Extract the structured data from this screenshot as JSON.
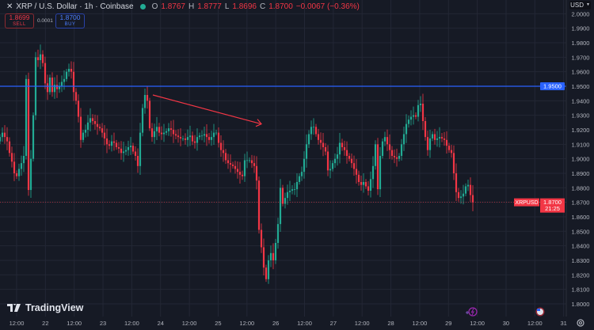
{
  "header": {
    "title": "XRP / U.S. Dollar · 1h · Coinbase",
    "open_label": "O",
    "open": "1.8767",
    "high_label": "H",
    "high": "1.8777",
    "low_label": "L",
    "low": "1.8696",
    "close_label": "C",
    "close": "1.8700",
    "change": "−0.0067 (−0.36%)"
  },
  "trade": {
    "sell_price": "1.8699",
    "sell_label": "SELL",
    "spread": "0.0001",
    "buy_price": "1.8700",
    "buy_label": "BUY"
  },
  "currency": "USD",
  "brand": "TradingView",
  "colors": {
    "up": "#22ab94",
    "down": "#f23645",
    "hline": "#2962ff",
    "background": "#161a25"
  },
  "chart_data": {
    "type": "candlestick",
    "symbol_label": "XRPUSD",
    "last_price": "1.8700",
    "countdown": "21:25",
    "horizontal_line": {
      "value": 1.95,
      "label": "1.9500"
    },
    "trend_arrow": {
      "from": 1.944,
      "to": 1.924
    },
    "ylim": [
      1.796,
      2.0
    ],
    "y_ticks": [
      "2.0000",
      "1.9900",
      "1.9800",
      "1.9700",
      "1.9600",
      "1.9500",
      "1.9400",
      "1.9300",
      "1.9200",
      "1.9100",
      "1.9000",
      "1.8900",
      "1.8800",
      "1.8700",
      "1.8600",
      "1.8500",
      "1.8400",
      "1.8300",
      "1.8200",
      "1.8100",
      "1.8000"
    ],
    "x_ticks": [
      "12:00",
      "22",
      "12:00",
      "23",
      "12:00",
      "24",
      "12:00",
      "25",
      "12:00",
      "26",
      "12:00",
      "27",
      "12:00",
      "28",
      "12:00",
      "29",
      "12:00",
      "30",
      "12:00",
      "31"
    ],
    "first_open": 1.912,
    "closes": [
      1.915,
      1.918,
      1.915,
      1.912,
      1.904,
      1.898,
      1.89,
      1.888,
      1.893,
      1.897,
      1.902,
      1.955,
      1.8785,
      1.9,
      1.93,
      1.97,
      1.968,
      1.972,
      1.966,
      1.952,
      1.946,
      1.956,
      1.946,
      1.951,
      1.948,
      1.95,
      1.953,
      1.955,
      1.96,
      1.962,
      1.96,
      1.946,
      1.94,
      1.929,
      1.913,
      1.918,
      1.92,
      1.925,
      1.928,
      1.926,
      1.924,
      1.922,
      1.921,
      1.918,
      1.914,
      1.91,
      1.909,
      1.912,
      1.911,
      1.908,
      1.907,
      1.904,
      1.905,
      1.906,
      1.908,
      1.909,
      1.905,
      1.902,
      1.895,
      1.918,
      1.935,
      1.944,
      1.94,
      1.921,
      1.915,
      1.919,
      1.922,
      1.918,
      1.917,
      1.918,
      1.919,
      1.921,
      1.92,
      1.917,
      1.916,
      1.915,
      1.914,
      1.914,
      1.913,
      1.915,
      1.916,
      1.912,
      1.911,
      1.915,
      1.916,
      1.916,
      1.917,
      1.915,
      1.913,
      1.915,
      1.918,
      1.918,
      1.911,
      1.906,
      1.904,
      1.899,
      1.897,
      1.896,
      1.895,
      1.893,
      1.891,
      1.889,
      1.888,
      1.899,
      1.899,
      1.899,
      1.897,
      1.895,
      1.885,
      1.851,
      1.839,
      1.825,
      1.817,
      1.83,
      1.835,
      1.83,
      1.842,
      1.855,
      1.88,
      1.869,
      1.873,
      1.877,
      1.878,
      1.879,
      1.879,
      1.884,
      1.888,
      1.891,
      1.9,
      1.91,
      1.917,
      1.922,
      1.922,
      1.917,
      1.913,
      1.911,
      1.908,
      1.905,
      1.892,
      1.893,
      1.897,
      1.9,
      1.903,
      1.911,
      1.908,
      1.906,
      1.902,
      1.9,
      1.897,
      1.893,
      1.889,
      1.884,
      1.882,
      1.884,
      1.881,
      1.878,
      1.886,
      1.895,
      1.91,
      1.879,
      1.902,
      1.912,
      1.915,
      1.91,
      1.906,
      1.902,
      1.901,
      1.9,
      1.902,
      1.91,
      1.917,
      1.924,
      1.927,
      1.929,
      1.93,
      1.929,
      1.937,
      1.938,
      1.926,
      1.915,
      1.906,
      1.914,
      1.917,
      1.913,
      1.914,
      1.915,
      1.914,
      1.913,
      1.909,
      1.906,
      1.904,
      1.89,
      1.877,
      1.873,
      1.874,
      1.876,
      1.881,
      1.882,
      1.875,
      1.87
    ]
  }
}
